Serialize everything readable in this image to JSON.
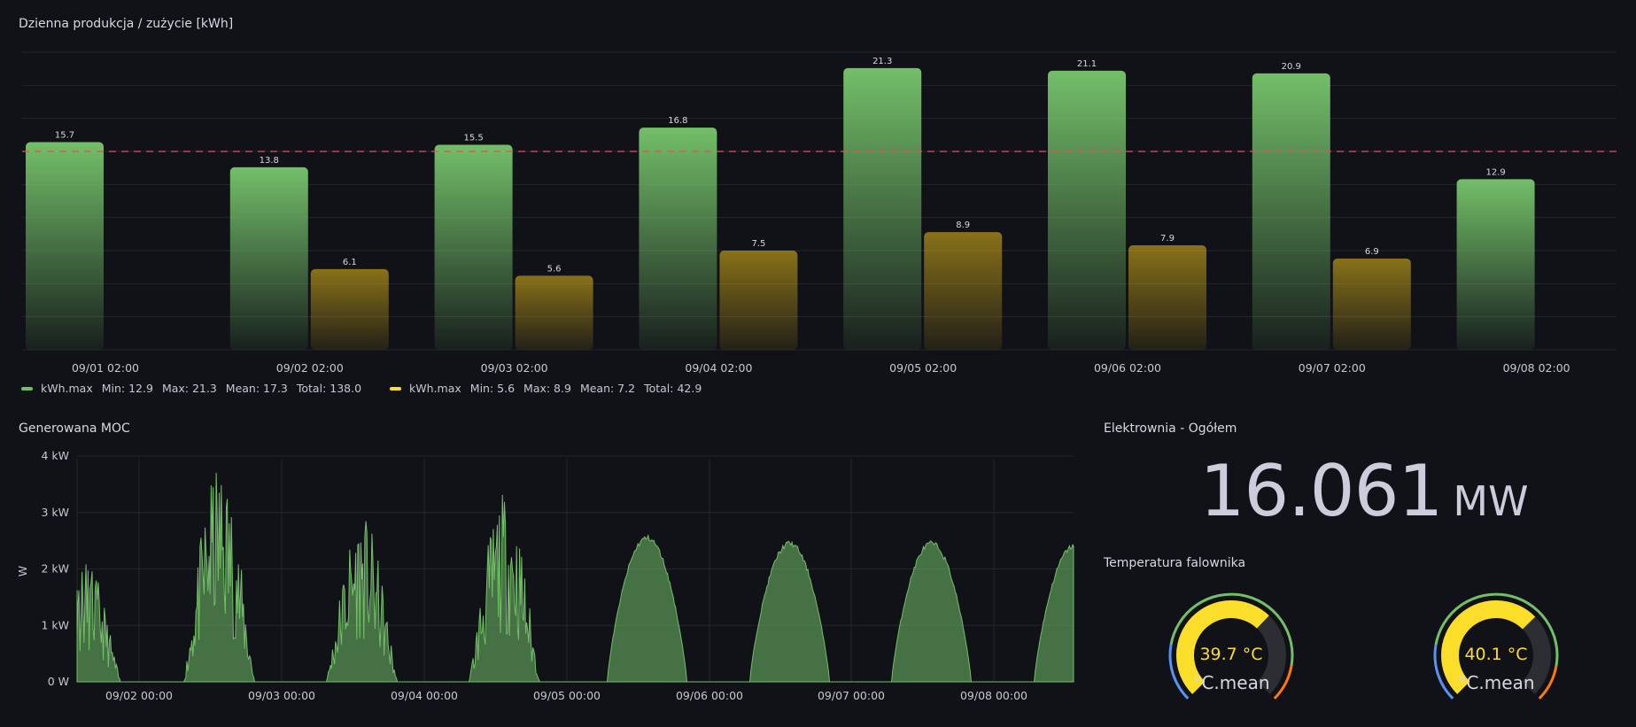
{
  "bar_panel": {
    "title": "Dzienna produkcja / zużycie [kWh]"
  },
  "power_panel": {
    "title": "Generowana MOC",
    "ylabel": "W"
  },
  "stat_panel": {
    "title": "Elektrownia - Ogółem",
    "value": "16.061",
    "unit": "MW"
  },
  "temp_panel": {
    "title": "Temperatura falownika",
    "gauges": [
      {
        "value": 39.7,
        "display": "39.7 °C",
        "label": "°C.mean"
      },
      {
        "value": 40.1,
        "display": "40.1 °C",
        "label": "°C.mean"
      }
    ]
  },
  "legend": [
    {
      "name": "kWh.max",
      "color": "#73bf69",
      "stats": [
        "Min: 12.9",
        "Max: 21.3",
        "Mean: 17.3",
        "Total: 138.0"
      ]
    },
    {
      "name": "kWh.max",
      "color": "#fade2a",
      "stats": [
        "Min: 5.6",
        "Max: 8.9",
        "Mean: 7.2",
        "Total: 42.9"
      ]
    }
  ],
  "colors": {
    "green": "#73bf69",
    "yellow": "#fade2a",
    "threshold": "#f2495c",
    "background": "#111217"
  },
  "chart_data": [
    {
      "type": "bar",
      "title": "Dzienna produkcja / zużycie [kWh]",
      "categories": [
        "09/01 02:00",
        "09/02 02:00",
        "09/03 02:00",
        "09/04 02:00",
        "09/05 02:00",
        "09/06 02:00",
        "09/07 02:00",
        "09/08 02:00"
      ],
      "series": [
        {
          "name": "kWh.max",
          "values": [
            15.7,
            13.8,
            15.5,
            16.8,
            21.3,
            21.1,
            20.9,
            12.9
          ]
        },
        {
          "name": "kWh.max",
          "values": [
            null,
            6.1,
            5.6,
            7.5,
            8.9,
            7.9,
            6.9,
            null
          ]
        }
      ],
      "ylim": [
        0,
        22.5
      ],
      "threshold": 15,
      "grid": true,
      "legend": "bottom-left"
    },
    {
      "type": "area",
      "title": "Generowana MOC",
      "ylabel": "W",
      "xticks": [
        "09/02 00:00",
        "09/03 00:00",
        "09/04 00:00",
        "09/05 00:00",
        "09/06 00:00",
        "09/07 00:00",
        "09/08 00:00"
      ],
      "yticks": [
        "0 W",
        "1 kW",
        "2 kW",
        "3 kW",
        "4 kW"
      ],
      "ylim": [
        0,
        4000
      ],
      "days": [
        {
          "label": "09/01",
          "peak": 2150,
          "shape": "spiky"
        },
        {
          "label": "09/02",
          "peak": 3850,
          "shape": "spiky"
        },
        {
          "label": "09/03",
          "peak": 2950,
          "shape": "spiky"
        },
        {
          "label": "09/04",
          "peak": 3350,
          "shape": "spiky"
        },
        {
          "label": "09/05",
          "peak": 2600,
          "shape": "smooth"
        },
        {
          "label": "09/06",
          "peak": 2500,
          "shape": "smooth"
        },
        {
          "label": "09/07",
          "peak": 2500,
          "shape": "smooth"
        },
        {
          "label": "09/08",
          "peak": 2450,
          "shape": "smooth"
        }
      ]
    },
    {
      "type": "gauge",
      "title": "Temperatura falownika",
      "values": [
        39.7,
        40.1
      ],
      "unit": "°C",
      "label": "°C.mean"
    }
  ]
}
